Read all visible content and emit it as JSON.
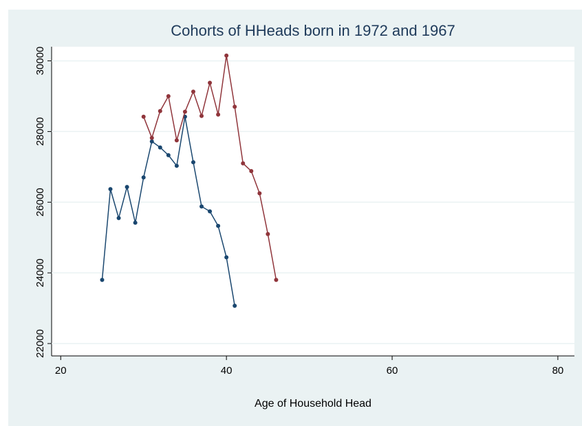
{
  "chart_data": {
    "type": "line",
    "title": "Cohorts of HHeads born in 1972 and 1967",
    "x_label": "Age of Household Head",
    "series": [
      {
        "color": "#1a476f",
        "x": [
          25,
          26,
          27,
          28,
          29,
          30,
          31,
          32,
          33,
          34,
          35,
          36,
          37,
          38,
          39,
          40,
          41
        ],
        "values": [
          23800,
          26370,
          25550,
          26430,
          25420,
          26700,
          27720,
          27550,
          27330,
          27030,
          28420,
          27130,
          25880,
          25740,
          25330,
          24440,
          23070
        ]
      },
      {
        "color": "#90353b",
        "x": [
          30,
          31,
          32,
          33,
          34,
          35,
          36,
          37,
          38,
          39,
          40,
          41,
          42,
          43,
          44,
          45,
          46
        ],
        "values": [
          28420,
          27820,
          28580,
          29000,
          27750,
          28560,
          29130,
          28440,
          29380,
          28480,
          30150,
          28700,
          27100,
          26880,
          26250,
          25100,
          23800
        ]
      }
    ],
    "xlim": [
      18.9,
      82
    ],
    "xticks": [
      20,
      40,
      60,
      80
    ],
    "ylim": [
      21650,
      30400
    ],
    "yticks": [
      22000,
      24000,
      26000,
      28000,
      30000
    ],
    "grid": true
  }
}
